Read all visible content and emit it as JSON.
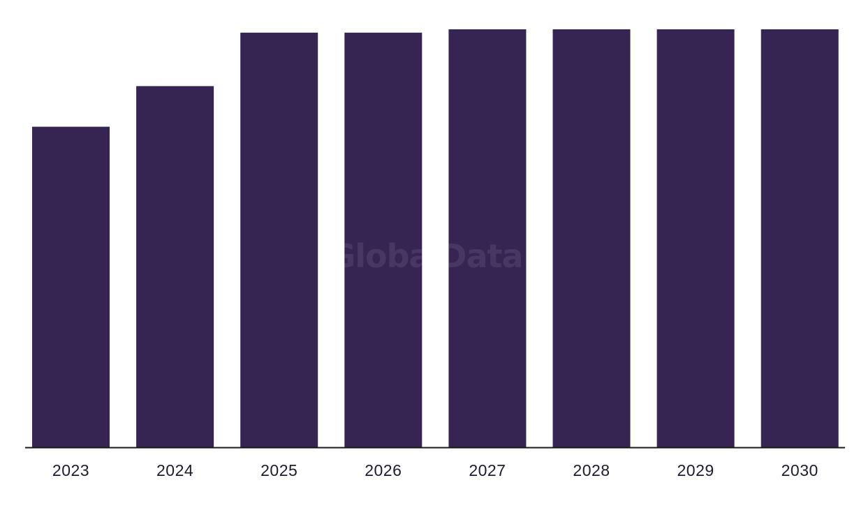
{
  "chart_data": {
    "type": "bar",
    "title": "",
    "xlabel": "",
    "ylabel": "",
    "categories": [
      "2023",
      "2024",
      "2025",
      "2026",
      "2027",
      "2028",
      "2029",
      "2030"
    ],
    "values": [
      77.3,
      87.1,
      100,
      100,
      100.8,
      100.8,
      100.8,
      100.8
    ],
    "ylim": [
      0,
      100.8
    ],
    "grid": false,
    "legend": "none",
    "bar_color": "#362453",
    "axis_color": "#1a1a1a"
  },
  "watermark": "GlobalData"
}
